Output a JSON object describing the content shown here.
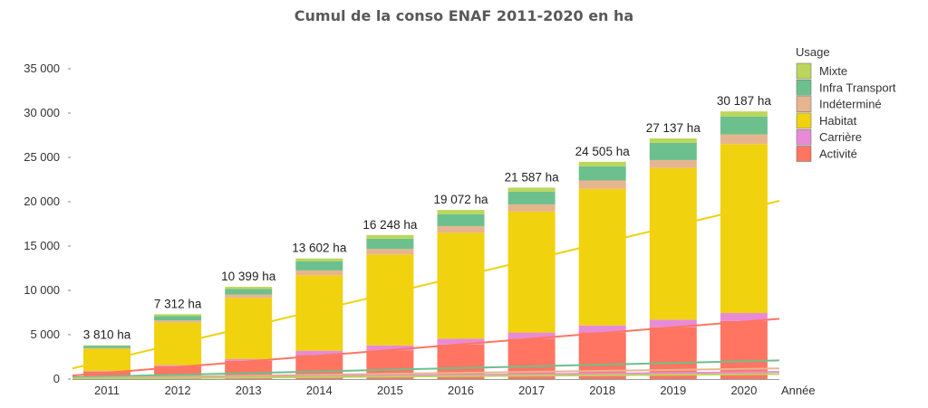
{
  "chart_data": {
    "type": "bar",
    "stacked": true,
    "title": "Cumul de la conso ENAF 2011-2020 en ha",
    "xlabel": "Année",
    "ylabel": "",
    "ylim": [
      0,
      37500
    ],
    "yticks": [
      0,
      5000,
      10000,
      15000,
      20000,
      25000,
      30000,
      35000
    ],
    "ytick_labels": [
      "0",
      "5 000",
      "10 000",
      "15 000",
      "20 000",
      "25 000",
      "30 000",
      "35 000"
    ],
    "categories": [
      "2011",
      "2012",
      "2013",
      "2014",
      "2015",
      "2016",
      "2017",
      "2018",
      "2019",
      "2020"
    ],
    "legend_title": "Usage",
    "legend_position": "top-right",
    "series": [
      {
        "name": "Activité",
        "color": "#FF7562",
        "values": [
          850,
          1450,
          2050,
          2700,
          3250,
          3900,
          4550,
          5250,
          5850,
          6550
        ]
      },
      {
        "name": "Carrière",
        "color": "#E88BD6",
        "values": [
          60,
          120,
          200,
          500,
          550,
          650,
          700,
          800,
          850,
          900
        ]
      },
      {
        "name": "Habitat",
        "color": "#F0D20F",
        "values": [
          2500,
          4800,
          6900,
          8500,
          10250,
          11950,
          13650,
          15400,
          17100,
          19050
        ]
      },
      {
        "name": "Indéterminé",
        "color": "#E6B58E",
        "values": [
          80,
          250,
          380,
          550,
          630,
          750,
          800,
          950,
          900,
          1100
        ]
      },
      {
        "name": "Infra Transport",
        "color": "#6CC08D",
        "values": [
          270,
          500,
          630,
          1050,
          1150,
          1350,
          1450,
          1600,
          1950,
          2000
        ]
      },
      {
        "name": "Mixte",
        "color": "#BBD65A",
        "values": [
          50,
          192,
          239,
          302,
          418,
          472,
          437,
          505,
          487,
          587
        ]
      }
    ],
    "totals": [
      3810,
      7312,
      10399,
      13602,
      16248,
      19072,
      21587,
      24505,
      27137,
      30187
    ],
    "total_labels": [
      "3 810 ha",
      "7 312 ha",
      "10 399 ha",
      "13 602 ha",
      "16 248 ha",
      "19 072 ha",
      "21 587 ha",
      "24 505 ha",
      "27 137 ha",
      "30 187 ha"
    ],
    "trendlines": [
      {
        "series": "Habitat",
        "color": "#F0D20F",
        "start": 1200,
        "end": 20100
      },
      {
        "series": "Activité",
        "color": "#FF7562",
        "start": 400,
        "end": 6800
      },
      {
        "series": "Infra Transport",
        "color": "#6CC08D",
        "start": 200,
        "end": 2100
      },
      {
        "series": "Indéterminé",
        "color": "#E6B58E",
        "start": 100,
        "end": 1200
      },
      {
        "series": "Carrière",
        "color": "#E88BD6",
        "start": 50,
        "end": 800
      },
      {
        "series": "Mixte",
        "color": "#BBD65A",
        "start": 40,
        "end": 560
      }
    ],
    "grid": false
  }
}
